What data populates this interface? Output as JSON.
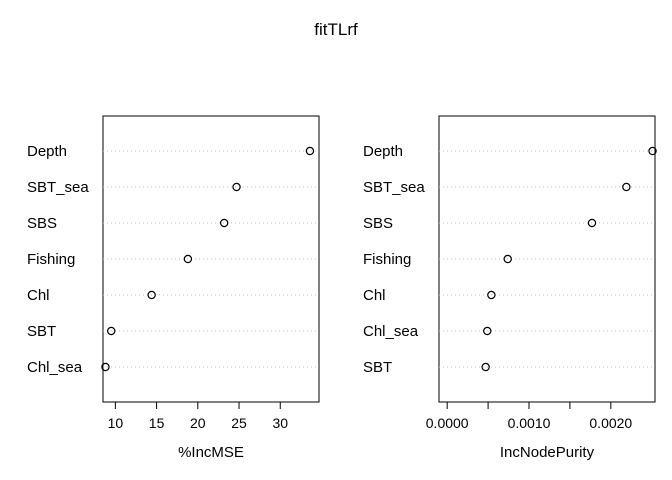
{
  "chart_data": {
    "type": "scatter",
    "title": "fitTLrf",
    "panels": [
      {
        "xlabel": "%IncMSE",
        "xlim": [
          8.5,
          34.7
        ],
        "xticks": [
          10,
          15,
          20,
          25,
          30
        ],
        "xtick_labels": [
          "10",
          "15",
          "20",
          "25",
          "30"
        ],
        "categories": [
          "Depth",
          "SBT_sea",
          "SBS",
          "Fishing",
          "Chl",
          "SBT",
          "Chl_sea"
        ],
        "values": [
          33.6,
          24.7,
          23.2,
          18.8,
          14.4,
          9.5,
          8.8
        ]
      },
      {
        "xlabel": "IncNodePurity",
        "xlim": [
          -0.0001,
          0.00254
        ],
        "xticks": [
          0,
          0.0005,
          0.001,
          0.0015,
          0.002
        ],
        "xtick_labels": [
          "0.0000",
          "",
          "0.0010",
          "",
          "0.0020"
        ],
        "categories": [
          "Depth",
          "SBT_sea",
          "SBS",
          "Fishing",
          "Chl",
          "Chl_sea",
          "SBT"
        ],
        "values": [
          0.00251,
          0.00219,
          0.00177,
          0.00074,
          0.00054,
          0.00049,
          0.00047
        ]
      }
    ]
  }
}
